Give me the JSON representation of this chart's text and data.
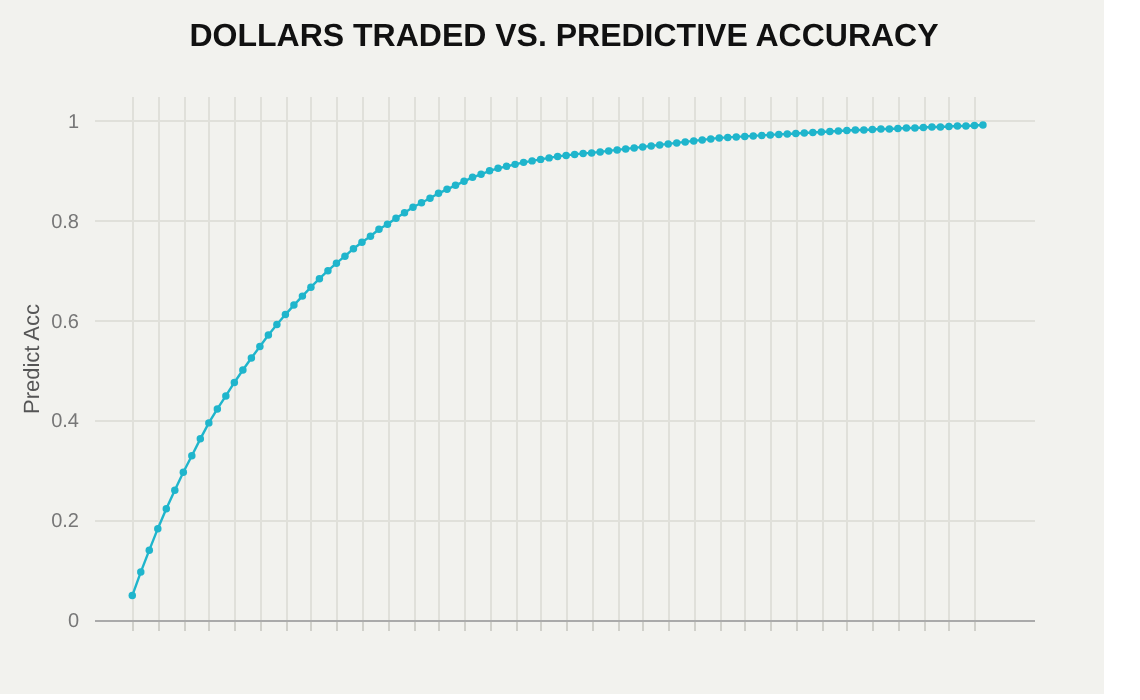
{
  "chart_data": {
    "type": "line",
    "title": "DOLLARS TRADED VS. PREDICTIVE ACCURACY",
    "ylabel": "Predict Acc",
    "categories": [
      null,
      null,
      null,
      null,
      null,
      null,
      null,
      null,
      null,
      null,
      null,
      null,
      null,
      null,
      null,
      null,
      null,
      null,
      null,
      null,
      null,
      null,
      null,
      null,
      null,
      null,
      null,
      null,
      null,
      null,
      null,
      null,
      null,
      null,
      null,
      null,
      null,
      null,
      null,
      null,
      null,
      null,
      null,
      null,
      null,
      null,
      null,
      null,
      null,
      null,
      null,
      null,
      null,
      null,
      null,
      null,
      null,
      null,
      null,
      null,
      null,
      null,
      null,
      null,
      null,
      null,
      null,
      null,
      null,
      null,
      null,
      null,
      null,
      null,
      null,
      null,
      null,
      null,
      null,
      null,
      null,
      null,
      null,
      null,
      null,
      null,
      null,
      null,
      null,
      null,
      null,
      null,
      null,
      null,
      null,
      null,
      null,
      null,
      null,
      null,
      null
    ],
    "series": [
      {
        "color": "#1fb5cc",
        "values": [
          0.049,
          0.096,
          0.14,
          0.183,
          0.223,
          0.26,
          0.296,
          0.329,
          0.363,
          0.395,
          0.423,
          0.449,
          0.476,
          0.501,
          0.525,
          0.548,
          0.571,
          0.592,
          0.612,
          0.631,
          0.649,
          0.667,
          0.684,
          0.7,
          0.715,
          0.729,
          0.744,
          0.757,
          0.769,
          0.783,
          0.793,
          0.805,
          0.816,
          0.827,
          0.836,
          0.845,
          0.855,
          0.863,
          0.871,
          0.879,
          0.887,
          0.893,
          0.9,
          0.905,
          0.909,
          0.913,
          0.917,
          0.92,
          0.923,
          0.926,
          0.929,
          0.931,
          0.933,
          0.935,
          0.936,
          0.938,
          0.94,
          0.942,
          0.944,
          0.946,
          0.948,
          0.95,
          0.952,
          0.954,
          0.956,
          0.958,
          0.96,
          0.962,
          0.964,
          0.966,
          0.967,
          0.968,
          0.969,
          0.97,
          0.971,
          0.972,
          0.973,
          0.974,
          0.975,
          0.976,
          0.977,
          0.978,
          0.979,
          0.98,
          0.981,
          0.982,
          0.982,
          0.983,
          0.984,
          0.984,
          0.985,
          0.986,
          0.986,
          0.987,
          0.988,
          0.988,
          0.989,
          0.99,
          0.99,
          0.991,
          0.992
        ]
      }
    ],
    "ylim": [
      0,
      1.05
    ],
    "yticks": [
      0,
      0.2,
      0.4,
      0.6,
      0.8,
      1
    ],
    "grid": true,
    "marker": "circle",
    "line_style": "solid",
    "legend": false
  }
}
